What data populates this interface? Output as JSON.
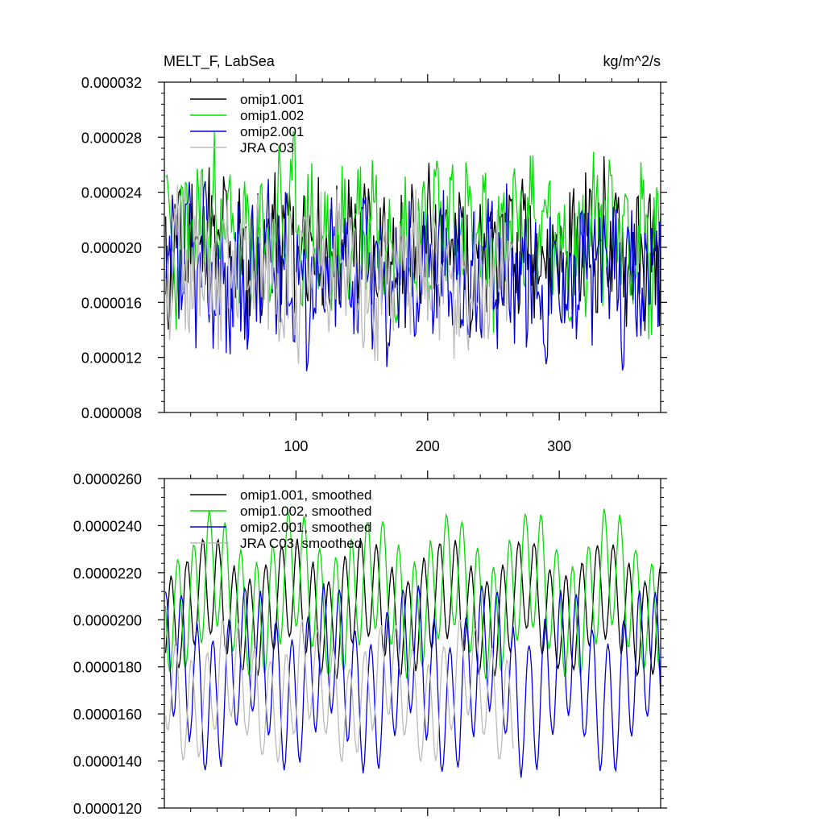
{
  "chart_data": [
    {
      "type": "line",
      "title": "MELT_F, LabSea",
      "units": "kg/m^2/s",
      "xlim": [
        0,
        377
      ],
      "ylim": [
        8e-06,
        3.2e-05
      ],
      "x_ticks": [
        "100",
        "200",
        "300"
      ],
      "x_tick_values": [
        100,
        200,
        300
      ],
      "y_ticks": [
        "0.000008",
        "0.000012",
        "0.000016",
        "0.000020",
        "0.000024",
        "0.000028",
        "0.000032"
      ],
      "y_tick_values": [
        8e-06,
        1.2e-05,
        1.6e-05,
        2e-05,
        2.4e-05,
        2.8e-05,
        3.2e-05
      ],
      "legend_position": "top-left",
      "series": [
        {
          "name": "omip1.001",
          "color": "#000000",
          "length": 377,
          "base": 2e-05,
          "amp": 2.8e-06,
          "noise": 4.2e-06,
          "seed": 11
        },
        {
          "name": "omip1.002",
          "color": "#00e000",
          "length": 377,
          "base": 2.1e-05,
          "amp": 4e-06,
          "noise": 4e-06,
          "seed": 23
        },
        {
          "name": "omip2.001",
          "color": "#0000dd",
          "length": 377,
          "base": 1.8e-05,
          "amp": 3e-06,
          "noise": 4.5e-06,
          "seed": 37
        },
        {
          "name": "JRA C03",
          "color": "#bbbbbb",
          "length": 265,
          "base": 1.8e-05,
          "amp": 2.5e-06,
          "noise": 4.5e-06,
          "seed": 51
        }
      ]
    },
    {
      "type": "line",
      "title": "",
      "units": "",
      "xlim": [
        0,
        377
      ],
      "ylim": [
        1.2e-05,
        2.6e-05
      ],
      "x_ticks": [
        "",
        "",
        ""
      ],
      "x_tick_values": [
        100,
        200,
        300
      ],
      "y_ticks": [
        "0.0000120",
        "0.0000140",
        "0.0000160",
        "0.0000180",
        "0.0000200",
        "0.0000220",
        "0.0000240",
        "0.0000260"
      ],
      "y_tick_values": [
        1.2e-05,
        1.4e-05,
        1.6e-05,
        1.8e-05,
        2e-05,
        2.2e-05,
        2.4e-05,
        2.6e-05
      ],
      "legend_position": "top-left",
      "series": [
        {
          "name": "omip1.001, smoothed",
          "color": "#000000",
          "length": 377,
          "base": 2.05e-05,
          "amp": 3e-06,
          "noise": 6e-07,
          "seed": 61
        },
        {
          "name": "omip1.002, smoothed",
          "color": "#00e000",
          "length": 377,
          "base": 2.1e-05,
          "amp": 3.5e-06,
          "noise": 6e-07,
          "seed": 73
        },
        {
          "name": "omip2.001, smoothed",
          "color": "#0000dd",
          "length": 377,
          "base": 1.75e-05,
          "amp": 4e-06,
          "noise": 7e-07,
          "seed": 89
        },
        {
          "name": "JRA C03, smoothed",
          "color": "#bbbbbb",
          "length": 265,
          "base": 1.7e-05,
          "amp": 3e-06,
          "noise": 8e-07,
          "seed": 97
        }
      ]
    }
  ]
}
